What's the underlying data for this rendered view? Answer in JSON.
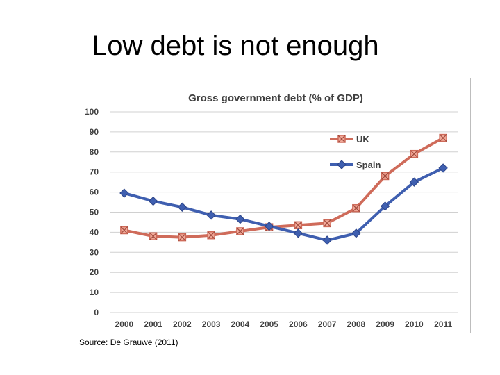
{
  "slide": {
    "title": "Low debt is not enough",
    "source": "Source: De Grauwe (2011)"
  },
  "colors": {
    "uk": "#cf6b5a",
    "spain": "#3f5fb0",
    "grid": "#d0d0d0",
    "axis_text": "#404040"
  },
  "chart_data": {
    "type": "line",
    "title": "Gross government debt (% of GDP)",
    "xlabel": "",
    "ylabel": "",
    "ylim": [
      0,
      100
    ],
    "yticks": [
      0,
      10,
      20,
      30,
      40,
      50,
      60,
      70,
      80,
      90,
      100
    ],
    "grid": true,
    "legend_position": "top-right",
    "categories": [
      "2000",
      "2001",
      "2002",
      "2003",
      "2004",
      "2005",
      "2006",
      "2007",
      "2008",
      "2009",
      "2010",
      "2011"
    ],
    "series": [
      {
        "name": "UK",
        "marker": "square-x",
        "color": "#cf6b5a",
        "values": [
          41,
          38,
          37.5,
          38.5,
          40.5,
          42.5,
          43.5,
          44.5,
          52,
          68,
          79,
          87
        ]
      },
      {
        "name": "Spain",
        "marker": "diamond",
        "color": "#3f5fb0",
        "values": [
          59.5,
          55.5,
          52.5,
          48.5,
          46.5,
          43,
          39.5,
          36,
          39.5,
          53,
          65,
          72
        ]
      }
    ]
  }
}
